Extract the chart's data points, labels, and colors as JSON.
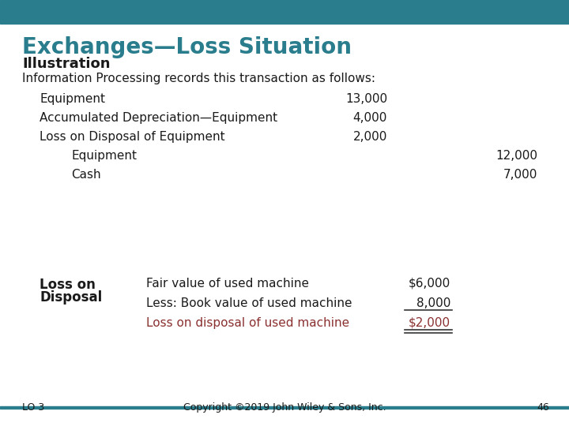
{
  "title": "Exchanges—Loss Situation",
  "subtitle": "Illustration",
  "intro": "Information Processing records this transaction as follows:",
  "title_color": "#2a7d8c",
  "subtitle_color": "#1a1a1a",
  "header_bar_color": "#2a7d8c",
  "footer_line_color": "#2a7d8c",
  "bg_color": "#ffffff",
  "body_text_color": "#1a1a1a",
  "red_text_color": "#8b3030",
  "footer_text": "Copyright ©2019 John Wiley & Sons, Inc.",
  "lo_text": "LO 3",
  "page_num": "46",
  "journal_entries": [
    {
      "label": "Equipment",
      "indent": false,
      "debit": "13,000",
      "credit": ""
    },
    {
      "label": "Accumulated Depreciation—Equipment",
      "indent": false,
      "debit": "4,000",
      "credit": ""
    },
    {
      "label": "Loss on Disposal of Equipment",
      "indent": false,
      "debit": "2,000",
      "credit": ""
    },
    {
      "label": "Equipment",
      "indent": true,
      "debit": "",
      "credit": "12,000"
    },
    {
      "label": "Cash",
      "indent": true,
      "debit": "",
      "credit": "7,000"
    }
  ],
  "box_label_line1": "Loss on",
  "box_label_line2": "Disposal",
  "box_rows": [
    {
      "text": "Fair value of used machine",
      "value": "$6,000",
      "underline_above": false,
      "underline_below": false,
      "red": false
    },
    {
      "text": "Less: Book value of used machine",
      "value": "8,000",
      "underline_above": false,
      "underline_below": true,
      "red": false
    },
    {
      "text": "Loss on disposal of used machine",
      "value": "$2,000",
      "underline_above": false,
      "underline_below": true,
      "red": true
    }
  ]
}
